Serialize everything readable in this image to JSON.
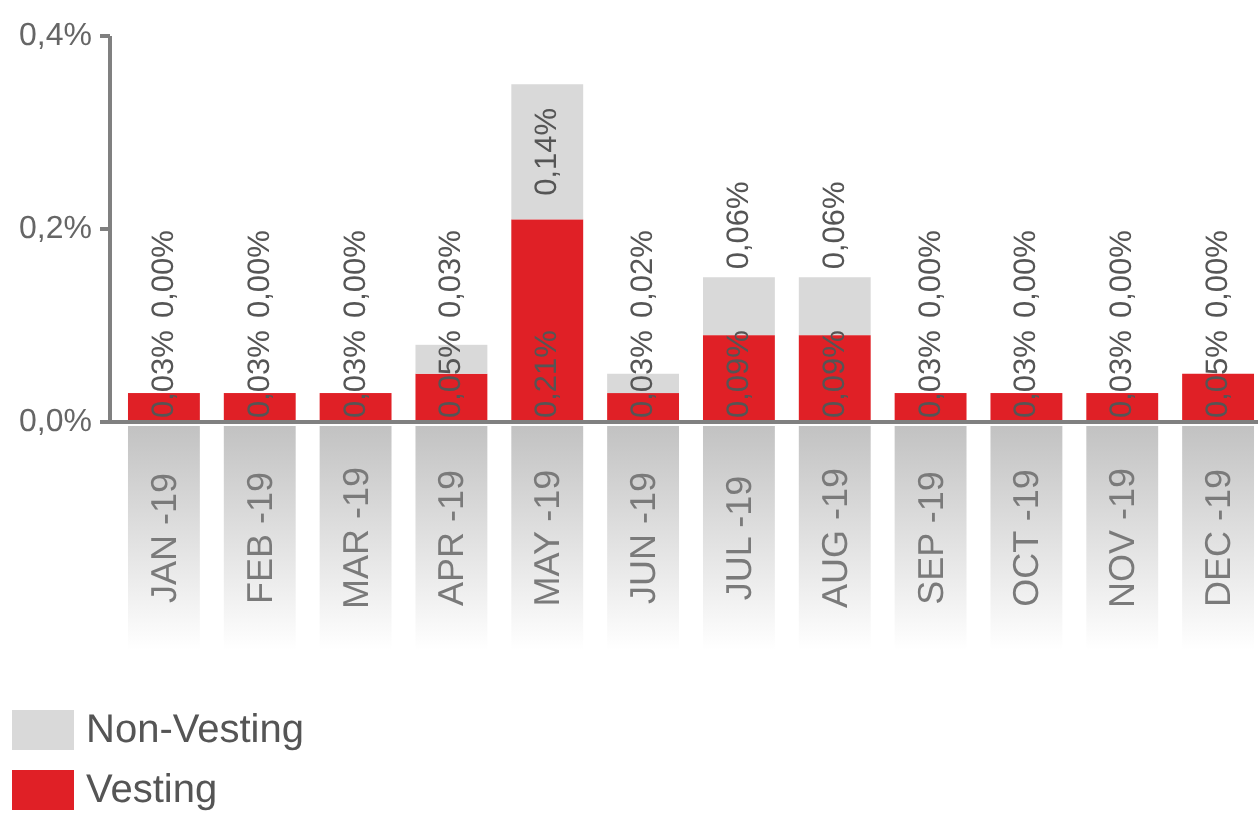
{
  "chart_data": {
    "type": "bar",
    "stacked": true,
    "categories": [
      "JAN -19",
      "FEB -19",
      "MAR -19",
      "APR -19",
      "MAY -19",
      "JUN -19",
      "JUL -19",
      "AUG -19",
      "SEP -19",
      "OCT -19",
      "NOV -19",
      "DEC -19"
    ],
    "series": [
      {
        "name": "Vesting",
        "color": "#e02026",
        "values": [
          0.03,
          0.03,
          0.03,
          0.05,
          0.21,
          0.03,
          0.09,
          0.09,
          0.03,
          0.03,
          0.03,
          0.05
        ],
        "value_labels": [
          "0,03%",
          "0,03%",
          "0,03%",
          "0,05%",
          "0,21%",
          "0,03%",
          "0,09%",
          "0,09%",
          "0,03%",
          "0,03%",
          "0,03%",
          "0,05%"
        ]
      },
      {
        "name": "Non-Vesting",
        "color": "#d9d9d9",
        "values": [
          0,
          0,
          0,
          0.03,
          0.14,
          0.02,
          0.06,
          0.06,
          0,
          0,
          0,
          0
        ],
        "value_labels": [
          "0,00%",
          "0,00%",
          "0,00%",
          "0,03%",
          "0,14%",
          "0,02%",
          "0,06%",
          "0,06%",
          "0,00%",
          "0,00%",
          "0,00%",
          "0,00%"
        ]
      }
    ],
    "ylim": [
      0,
      0.4
    ],
    "yticks": [
      {
        "value": 0,
        "label": "0,0%"
      },
      {
        "value": 0.2,
        "label": "0,2%"
      },
      {
        "value": 0.4,
        "label": "0,4%"
      }
    ],
    "legend": "bottom left"
  }
}
